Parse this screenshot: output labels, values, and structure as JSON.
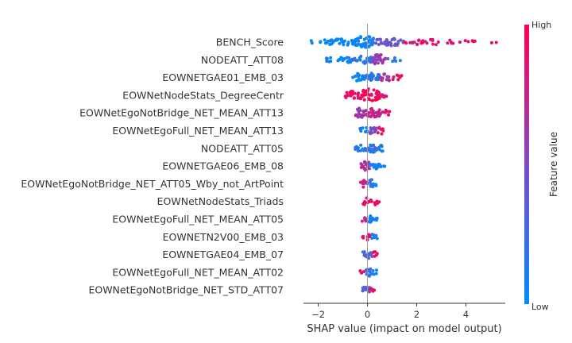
{
  "chart_data": {
    "type": "scatter",
    "subtype": "shap-summary-beeswarm",
    "xlabel": "SHAP value (impact on model output)",
    "xlim": [
      -2.6,
      5.6
    ],
    "xticks": [
      -2,
      0,
      2,
      4
    ],
    "xtick_labels": [
      "−2",
      "0",
      "2",
      "4"
    ],
    "colorbar": {
      "title": "Feature value",
      "high_label": "High",
      "low_label": "Low",
      "low_color": "#008bfb",
      "high_color": "#ff0052"
    },
    "features": [
      {
        "name": "BENCH_Score",
        "segments": [
          [
            -2.3,
            -1.8,
            0.05,
            0.35,
            0.0
          ],
          [
            -1.8,
            -0.5,
            0.3,
            0.32,
            0.0
          ],
          [
            -0.5,
            0.3,
            0.6,
            0.38,
            0.05
          ],
          [
            0.3,
            1.5,
            0.3,
            0.4,
            0.4
          ],
          [
            1.5,
            3.5,
            0.15,
            0.45,
            0.85
          ],
          [
            3.5,
            5.3,
            0.05,
            0.4,
            0.98
          ]
        ]
      },
      {
        "name": "NODEATT_ATT08",
        "segments": [
          [
            -1.7,
            -1.2,
            0.15,
            0.3,
            0.05
          ],
          [
            -1.2,
            -0.6,
            0.35,
            0.25,
            0.05
          ],
          [
            -0.6,
            0.2,
            0.4,
            0.3,
            0.15
          ],
          [
            0.2,
            0.8,
            0.55,
            0.35,
            0.6
          ],
          [
            0.8,
            1.4,
            0.1,
            0.3,
            0.2
          ]
        ]
      },
      {
        "name": "EOWNETGAE01_EMB_03",
        "segments": [
          [
            -0.6,
            -0.1,
            0.4,
            0.3,
            0.05
          ],
          [
            -0.1,
            0.5,
            0.5,
            0.3,
            0.15
          ],
          [
            0.5,
            1.0,
            0.3,
            0.35,
            0.7
          ],
          [
            1.0,
            1.4,
            0.2,
            0.4,
            0.9
          ]
        ]
      },
      {
        "name": "EOWNetNodeStats_DegreeCentr",
        "segments": [
          [
            -0.9,
            -0.4,
            0.35,
            0.35,
            0.95
          ],
          [
            -0.4,
            0.5,
            0.55,
            0.4,
            0.95
          ],
          [
            0.5,
            0.8,
            0.2,
            0.3,
            0.85
          ]
        ]
      },
      {
        "name": "EOWNetEgoNotBridge_NET_MEAN_ATT13",
        "segments": [
          [
            -0.5,
            -0.1,
            0.5,
            0.3,
            0.6
          ],
          [
            -0.1,
            0.6,
            0.45,
            0.3,
            0.75
          ],
          [
            0.6,
            0.9,
            0.2,
            0.4,
            0.9
          ]
        ]
      },
      {
        "name": "EOWNetEgoFull_NET_MEAN_ATT13",
        "segments": [
          [
            -0.3,
            0.0,
            0.4,
            0.3,
            0.1
          ],
          [
            0.0,
            0.4,
            0.4,
            0.3,
            0.5
          ],
          [
            0.4,
            0.7,
            0.25,
            0.4,
            0.9
          ]
        ]
      },
      {
        "name": "NODEATT_ATT05",
        "segments": [
          [
            -0.5,
            -0.1,
            0.35,
            0.25,
            0.1
          ],
          [
            -0.1,
            0.4,
            0.5,
            0.25,
            0.2
          ],
          [
            0.4,
            0.7,
            0.3,
            0.3,
            0.05
          ]
        ]
      },
      {
        "name": "EOWNETGAE06_EMB_08",
        "segments": [
          [
            -0.3,
            0.1,
            0.5,
            0.35,
            0.7
          ],
          [
            0.1,
            0.5,
            0.35,
            0.25,
            0.1
          ],
          [
            0.5,
            0.7,
            0.15,
            0.25,
            0.05
          ]
        ]
      },
      {
        "name": "EOWNetEgoNotBridge_NET_ATT05_Wby_not_ArtPoint",
        "segments": [
          [
            -0.3,
            0.0,
            0.35,
            0.3,
            0.8
          ],
          [
            0.0,
            0.3,
            0.45,
            0.3,
            0.2
          ],
          [
            0.3,
            0.4,
            0.2,
            0.3,
            0.05
          ]
        ]
      },
      {
        "name": "EOWNetNodeStats_Triads",
        "segments": [
          [
            -0.2,
            0.1,
            0.35,
            0.3,
            0.9
          ],
          [
            0.1,
            0.5,
            0.3,
            0.3,
            0.95
          ]
        ]
      },
      {
        "name": "EOWNetEgoFull_NET_MEAN_ATT05",
        "segments": [
          [
            -0.3,
            0.0,
            0.2,
            0.25,
            0.7
          ],
          [
            0.0,
            0.3,
            0.35,
            0.25,
            0.1
          ],
          [
            0.3,
            0.4,
            0.15,
            0.2,
            0.05
          ]
        ]
      },
      {
        "name": "EOWNETN2V00_EMB_03",
        "segments": [
          [
            -0.2,
            0.1,
            0.4,
            0.3,
            0.95
          ],
          [
            0.1,
            0.4,
            0.25,
            0.25,
            0.1
          ]
        ]
      },
      {
        "name": "EOWNETGAE04_EMB_07",
        "segments": [
          [
            -0.2,
            0.2,
            0.45,
            0.3,
            0.3
          ],
          [
            0.2,
            0.4,
            0.3,
            0.3,
            0.95
          ]
        ]
      },
      {
        "name": "EOWNetEgoFull_NET_MEAN_ATT02",
        "segments": [
          [
            -0.3,
            -0.1,
            0.15,
            0.25,
            0.95
          ],
          [
            -0.1,
            0.2,
            0.45,
            0.3,
            0.2
          ],
          [
            0.2,
            0.4,
            0.25,
            0.3,
            0.1
          ]
        ]
      },
      {
        "name": "EOWNetEgoNotBridge_NET_STD_ATT07",
        "segments": [
          [
            -0.2,
            0.1,
            0.4,
            0.3,
            0.3
          ],
          [
            0.1,
            0.3,
            0.3,
            0.3,
            0.9
          ]
        ]
      }
    ]
  }
}
